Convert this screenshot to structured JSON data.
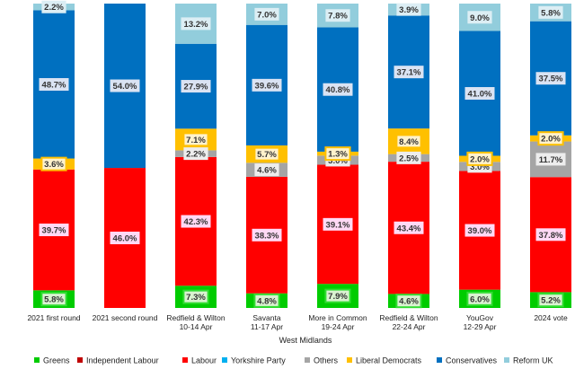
{
  "chart_data": {
    "type": "bar",
    "stacked": true,
    "title": "",
    "xlabel": "West Midlands",
    "ylabel": "",
    "ylim": [
      0,
      100
    ],
    "grid": false,
    "legend_position": "bottom",
    "categories": [
      [
        "2021 first round"
      ],
      [
        "2021 second round"
      ],
      [
        "Redfield & Wilton",
        "10-14 Apr"
      ],
      [
        "Savanta",
        "11-17 Apr"
      ],
      [
        "More in Common",
        "19-24 Apr"
      ],
      [
        "Redfield & Wilton",
        "22-24 Apr"
      ],
      [
        "YouGov",
        "12-29 Apr"
      ],
      [
        "2024 vote"
      ]
    ],
    "series": [
      {
        "name": "Greens",
        "color": "#00cc00",
        "values": [
          5.8,
          0,
          7.3,
          4.8,
          7.9,
          4.6,
          6.0,
          5.2
        ],
        "labels": [
          "5.8%",
          "",
          "7.3%",
          "4.8%",
          "7.9%",
          "4.6%",
          "6.0%",
          "5.2%"
        ]
      },
      {
        "name": "Independent Labour",
        "color": "#c00000",
        "values": [
          0,
          0,
          0,
          0,
          0,
          0,
          0,
          0
        ],
        "labels": [
          "",
          "",
          "",
          "",
          "",
          "",
          "",
          ""
        ]
      },
      {
        "name": "Labour",
        "color": "#ff0000",
        "values": [
          39.7,
          46.0,
          42.3,
          38.3,
          39.1,
          43.4,
          39.0,
          37.8
        ],
        "labels": [
          "39.7%",
          "46.0%",
          "42.3%",
          "38.3%",
          "39.1%",
          "43.4%",
          "39.0%",
          "37.8%"
        ]
      },
      {
        "name": "Yorkshire Party",
        "color": "#00b0f0",
        "values": [
          0,
          0,
          0,
          0,
          0,
          0,
          0,
          0
        ],
        "labels": [
          "",
          "",
          "",
          "",
          "",
          "",
          "",
          ""
        ]
      },
      {
        "name": "Others",
        "color": "#a5a5a5",
        "values": [
          0,
          0,
          2.2,
          4.6,
          3.0,
          2.5,
          3.0,
          11.7
        ],
        "labels": [
          "",
          "",
          "2.2%",
          "4.6%",
          "3.0%",
          "2.5%",
          "3.0%",
          "11.7%"
        ]
      },
      {
        "name": "Liberal Democrats",
        "color": "#ffc000",
        "values": [
          3.6,
          0,
          7.1,
          5.7,
          1.3,
          8.4,
          2.0,
          2.0
        ],
        "labels": [
          "3.6%",
          "",
          "7.1%",
          "5.7%",
          "1.3%",
          "8.4%",
          "2.0%",
          "2.0%"
        ]
      },
      {
        "name": "Conservatives",
        "color": "#0070c0",
        "values": [
          48.7,
          54.0,
          27.9,
          39.6,
          40.8,
          37.1,
          41.0,
          37.5
        ],
        "labels": [
          "48.7%",
          "54.0%",
          "27.9%",
          "39.6%",
          "40.8%",
          "37.1%",
          "41.0%",
          "37.5%"
        ]
      },
      {
        "name": "Reform UK",
        "color": "#92cddc",
        "values": [
          2.2,
          0,
          13.2,
          7.0,
          7.8,
          3.9,
          9.0,
          5.8
        ],
        "labels": [
          "2.2%",
          "",
          "13.2%",
          "7.0%",
          "7.8%",
          "3.9%",
          "9.0%",
          "5.8%"
        ]
      }
    ]
  }
}
